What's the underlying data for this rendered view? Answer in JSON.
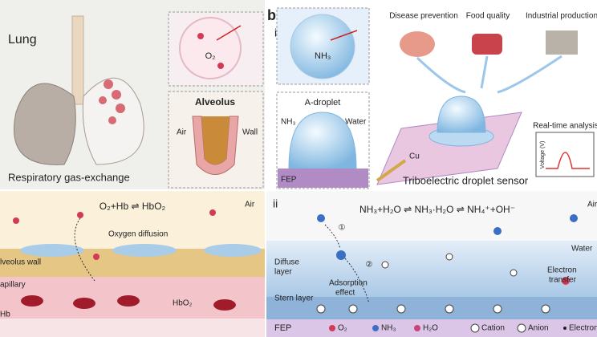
{
  "panel_a": {
    "top": {
      "title": "Lung",
      "o2": "O₂",
      "alveolus": "Alveolus",
      "air": "Air",
      "wall": "Wall",
      "caption": "Respiratory gas-exchange"
    },
    "bottom": {
      "equation": "O₂+Hb ⇌ HbO₂",
      "air": "Air",
      "diffusion": "Oxygen diffusion",
      "alveolus_wall": "lveolus wall",
      "capillary": "apillary",
      "hb": "Hb",
      "hbo2": "HbO₂"
    }
  },
  "panel_b": {
    "label": "b",
    "part_i": {
      "label": "i",
      "nh3": "NH₃",
      "applications": [
        "Disease prevention",
        "Food quality",
        "Industrial production"
      ],
      "droplet_title": "A-droplet",
      "droplet_nh3": "NH₃",
      "droplet_water": "Water",
      "fep": "FEP",
      "analysis": "Real-time analysis",
      "voltage_axis": "Voltage (V)",
      "cu": "Cu",
      "caption": "Triboelectric droplet sensor"
    },
    "part_ii": {
      "label": "ii",
      "equation": "NH₃+H₂O ⇌ NH₃·H₂O ⇌ NH₄⁺+OH⁻",
      "step1": "①",
      "step2": "②",
      "air": "Air",
      "water": "Water",
      "diffuse_layer": [
        "Diffuse",
        "layer"
      ],
      "adsorption": [
        "Adsorption",
        "effect"
      ],
      "electron_transfer": [
        "Electron",
        "transfer"
      ],
      "stern_layer": "Stern layer",
      "fep": "FEP",
      "legend": [
        "O₂",
        "NH₃",
        "H₂O",
        "Cation",
        "Anion",
        "Electron"
      ]
    }
  }
}
